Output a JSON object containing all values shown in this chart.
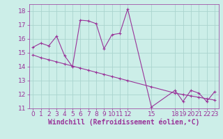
{
  "xlabel": "Windchill (Refroidissement éolien,°C)",
  "bg_color": "#cceee8",
  "grid_color": "#aad4ce",
  "line_color": "#993399",
  "spine_color": "#993399",
  "xlim": [
    -0.5,
    23.5
  ],
  "ylim": [
    11,
    18.5
  ],
  "yticks": [
    11,
    12,
    13,
    14,
    15,
    16,
    17,
    18
  ],
  "xtick_positions": [
    0,
    1,
    2,
    3,
    4,
    5,
    6,
    7,
    8,
    9,
    10,
    11,
    12,
    15,
    18,
    19,
    20,
    21,
    22,
    23
  ],
  "xtick_labels": [
    "0",
    "1",
    "2",
    "3",
    "4",
    "5",
    "6",
    "7",
    "8",
    "9",
    "10",
    "11",
    "12",
    "15",
    "18",
    "19",
    "20",
    "21",
    "22",
    "23"
  ],
  "series1_x": [
    0,
    1,
    2,
    3,
    4,
    5,
    6,
    7,
    8,
    9,
    10,
    11,
    12,
    15,
    18,
    19,
    20,
    21,
    22,
    23
  ],
  "series1_y": [
    15.4,
    15.7,
    15.5,
    16.2,
    14.8,
    14.0,
    17.35,
    17.3,
    17.1,
    15.3,
    16.3,
    16.4,
    18.15,
    11.1,
    12.3,
    11.5,
    12.3,
    12.1,
    11.5,
    12.2
  ],
  "series2_x": [
    0,
    1,
    2,
    3,
    4,
    5,
    6,
    7,
    8,
    9,
    10,
    11,
    12,
    15,
    18,
    19,
    20,
    21,
    22,
    23
  ],
  "series2_y": [
    14.85,
    14.65,
    14.5,
    14.35,
    14.2,
    14.05,
    13.9,
    13.75,
    13.6,
    13.45,
    13.3,
    13.15,
    13.0,
    12.55,
    12.1,
    12.0,
    11.9,
    11.8,
    11.7,
    11.6
  ],
  "font_size": 6.5,
  "xlabel_fontsize": 7,
  "marker": "+",
  "markersize": 3.5,
  "linewidth": 0.8
}
